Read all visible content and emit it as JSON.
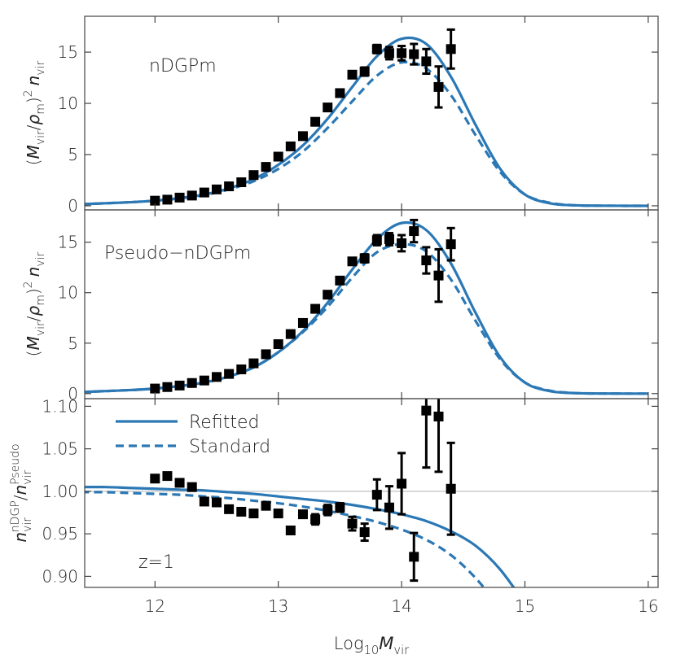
{
  "chart_data": [
    {
      "type": "line",
      "annotation": "nDGPm",
      "ylabel": [
        "(",
        "M",
        "vir",
        "/",
        "ρ",
        "m",
        ")",
        "2",
        "n",
        "vir"
      ],
      "xlim": [
        11.43,
        16.08
      ],
      "ylim": [
        -0.4,
        18.5
      ],
      "xticks": [
        12,
        13,
        14,
        15,
        16
      ],
      "yticks": [
        0,
        5,
        10,
        15
      ],
      "x": [
        11.4,
        11.6,
        11.8,
        12.0,
        12.2,
        12.4,
        12.6,
        12.8,
        13.0,
        13.2,
        13.4,
        13.6,
        13.8,
        14.0,
        14.2,
        14.4,
        14.6,
        14.8,
        15.0,
        15.2,
        15.4,
        15.6,
        15.8,
        16.0
      ],
      "series": [
        {
          "color": "#2b78b5",
          "style": "solid",
          "values": [
            0.15,
            0.25,
            0.35,
            0.5,
            0.75,
            1.1,
            1.7,
            2.6,
            4.0,
            5.9,
            8.5,
            11.6,
            14.6,
            16.3,
            15.8,
            12.6,
            7.9,
            3.6,
            1.1,
            0.25,
            0.05,
            0.01,
            0,
            0
          ]
        },
        {
          "color": "#2b78b5",
          "style": "dashed",
          "values": [
            0.15,
            0.25,
            0.35,
            0.5,
            0.72,
            1.05,
            1.6,
            2.4,
            3.6,
            5.3,
            7.6,
            10.2,
            12.7,
            14.0,
            13.4,
            10.8,
            6.9,
            3.3,
            1.1,
            0.3,
            0.05,
            0.01,
            0,
            0
          ]
        }
      ],
      "errorbar": {
        "color": "#000000",
        "x": [
          12.0,
          12.1,
          12.2,
          12.3,
          12.4,
          12.5,
          12.6,
          12.7,
          12.8,
          12.9,
          13.0,
          13.1,
          13.2,
          13.3,
          13.4,
          13.5,
          13.6,
          13.7,
          13.8,
          13.9,
          14.0,
          14.1,
          14.2,
          14.3,
          14.4
        ],
        "values": [
          0.5,
          0.6,
          0.8,
          1.0,
          1.3,
          1.6,
          1.9,
          2.3,
          3.0,
          3.8,
          4.8,
          5.8,
          6.8,
          8.2,
          9.6,
          11.0,
          12.8,
          13.1,
          15.3,
          14.9,
          14.9,
          14.8,
          14.1,
          11.6,
          15.3
        ],
        "errors": [
          0.1,
          0.1,
          0.1,
          0.1,
          0.1,
          0.1,
          0.1,
          0.1,
          0.1,
          0.1,
          0.1,
          0.1,
          0.1,
          0.1,
          0.1,
          0.1,
          0.3,
          0.4,
          0.4,
          0.6,
          0.7,
          1.0,
          1.2,
          2.0,
          1.9
        ]
      }
    },
    {
      "type": "line",
      "annotation": "Pseudo−nDGPm",
      "ylabel": [
        "(",
        "M",
        "vir",
        "/",
        "ρ",
        "m",
        ")",
        "2",
        "n",
        "vir"
      ],
      "xlim": [
        11.43,
        16.08
      ],
      "ylim": [
        -0.5,
        18.2
      ],
      "xticks": [
        12,
        13,
        14,
        15,
        16
      ],
      "yticks": [
        0,
        5,
        10,
        15
      ],
      "x": [
        11.4,
        11.6,
        11.8,
        12.0,
        12.2,
        12.4,
        12.6,
        12.8,
        13.0,
        13.2,
        13.4,
        13.6,
        13.8,
        14.0,
        14.2,
        14.4,
        14.6,
        14.8,
        15.0,
        15.2,
        15.4,
        15.6,
        15.8,
        16.0
      ],
      "series": [
        {
          "color": "#2b78b5",
          "style": "solid",
          "values": [
            0.15,
            0.25,
            0.35,
            0.5,
            0.75,
            1.1,
            1.7,
            2.6,
            4.1,
            6.2,
            9.0,
            12.3,
            15.3,
            16.9,
            16.2,
            12.9,
            8.0,
            3.6,
            1.1,
            0.25,
            0.05,
            0.01,
            0,
            0
          ]
        },
        {
          "color": "#2b78b5",
          "style": "dashed",
          "values": [
            0.15,
            0.25,
            0.35,
            0.5,
            0.75,
            1.1,
            1.7,
            2.6,
            4.1,
            6.1,
            8.6,
            11.5,
            14.0,
            14.8,
            14.1,
            11.3,
            7.2,
            3.4,
            1.1,
            0.3,
            0.06,
            0.01,
            0,
            0
          ]
        }
      ],
      "errorbar": {
        "color": "#000000",
        "x": [
          12.0,
          12.1,
          12.2,
          12.3,
          12.4,
          12.5,
          12.6,
          12.7,
          12.8,
          12.9,
          13.0,
          13.1,
          13.2,
          13.3,
          13.4,
          13.5,
          13.6,
          13.7,
          13.8,
          13.9,
          14.0,
          14.1,
          14.2,
          14.3,
          14.4
        ],
        "values": [
          0.5,
          0.65,
          0.8,
          1.05,
          1.3,
          1.65,
          1.95,
          2.4,
          3.0,
          3.9,
          4.9,
          5.9,
          7.0,
          8.4,
          9.8,
          11.2,
          13.1,
          13.4,
          15.2,
          15.3,
          14.9,
          16.1,
          13.2,
          11.7,
          14.8
        ],
        "errors": [
          0.1,
          0.1,
          0.1,
          0.1,
          0.1,
          0.1,
          0.1,
          0.1,
          0.1,
          0.1,
          0.1,
          0.1,
          0.1,
          0.1,
          0.1,
          0.1,
          0.3,
          0.4,
          0.5,
          0.6,
          0.8,
          1.1,
          1.3,
          2.6,
          1.6
        ]
      }
    },
    {
      "type": "line",
      "annotation": "z=1",
      "ylabel": [
        "n",
        "vir",
        "nDGP",
        "/",
        "n",
        "vir",
        "Pseudo"
      ],
      "xlabel": [
        "Log",
        "10",
        "M",
        "vir"
      ],
      "xlim": [
        11.43,
        16.08
      ],
      "ylim": [
        0.887,
        1.109
      ],
      "xticks": [
        12,
        13,
        14,
        15,
        16
      ],
      "yticks": [
        {
          "value": 0.9,
          "label": "0.90"
        },
        {
          "value": 0.95,
          "label": "0.95"
        },
        {
          "value": 1.0,
          "label": "1.00"
        },
        {
          "value": 1.05,
          "label": "1.05"
        },
        {
          "value": 1.1,
          "label": "1.10"
        }
      ],
      "reference_line": 1,
      "legend": "upper left",
      "x": [
        11.4,
        11.6,
        11.8,
        12.0,
        12.2,
        12.4,
        12.6,
        12.8,
        13.0,
        13.2,
        13.4,
        13.6,
        13.8,
        14.0,
        14.2,
        14.4,
        14.6,
        14.8,
        15.0
      ],
      "series": [
        {
          "name": "Refitted",
          "color": "#2b78b5",
          "style": "solid",
          "values": [
            1.005,
            1.005,
            1.004,
            1.003,
            1.002,
            1.001,
            0.999,
            0.997,
            0.994,
            0.991,
            0.988,
            0.984,
            0.979,
            0.973,
            0.965,
            0.953,
            0.936,
            0.908,
            0.868
          ]
        },
        {
          "name": "Standard",
          "color": "#2b78b5",
          "style": "dashed",
          "values": [
            0.999,
            0.999,
            0.998,
            0.997,
            0.996,
            0.994,
            0.992,
            0.989,
            0.986,
            0.982,
            0.977,
            0.971,
            0.964,
            0.955,
            0.943,
            0.925,
            0.898,
            0.862,
            0.82
          ]
        }
      ],
      "errorbar": {
        "color": "#000000",
        "x": [
          12.0,
          12.1,
          12.2,
          12.3,
          12.4,
          12.5,
          12.6,
          12.7,
          12.8,
          12.9,
          13.0,
          13.1,
          13.2,
          13.3,
          13.4,
          13.5,
          13.6,
          13.7,
          13.8,
          13.9,
          14.0,
          14.1,
          14.2,
          14.3,
          14.4
        ],
        "values": [
          1.015,
          1.018,
          1.01,
          1.005,
          0.988,
          0.987,
          0.979,
          0.976,
          0.974,
          0.983,
          0.974,
          0.954,
          0.973,
          0.967,
          0.978,
          0.981,
          0.962,
          0.952,
          0.996,
          0.981,
          1.009,
          0.923,
          1.095,
          1.088,
          1.003
        ],
        "errors": [
          0.003,
          0.003,
          0.003,
          0.003,
          0.003,
          0.003,
          0.003,
          0.003,
          0.003,
          0.003,
          0.003,
          0.003,
          0.003,
          0.006,
          0.006,
          0.005,
          0.008,
          0.01,
          0.018,
          0.025,
          0.036,
          0.028,
          0.067,
          0.065,
          0.054
        ]
      }
    }
  ]
}
